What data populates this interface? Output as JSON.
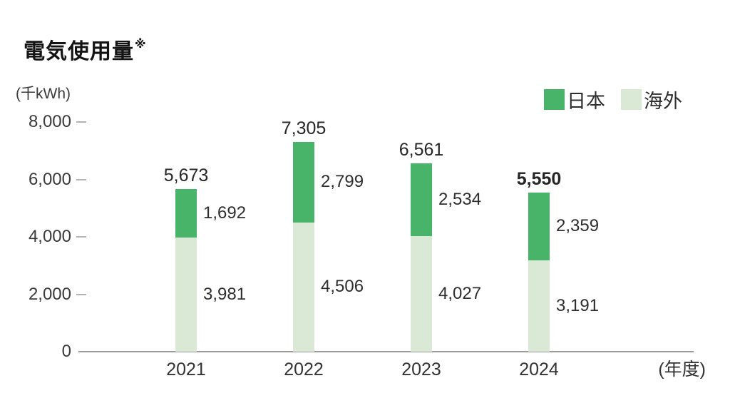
{
  "title": "電気使用量",
  "title_note": "※",
  "y_axis_unit": "(千kWh)",
  "x_axis_unit": "(年度)",
  "colors": {
    "japan": "#47b46a",
    "overseas": "#d9e9d5",
    "axis_line": "#9b9b9b",
    "tick": "#b4b4b4",
    "text": "#2e2e2e"
  },
  "legend": {
    "items": [
      {
        "label": "日本",
        "color": "#47b46a"
      },
      {
        "label": "海外",
        "color": "#d9e9d5"
      }
    ]
  },
  "chart_data": {
    "type": "bar",
    "stacked": true,
    "title": "電気使用量",
    "unit": "千kWh",
    "xlabel": "年度",
    "categories": [
      "2021",
      "2022",
      "2023",
      "2024"
    ],
    "series": [
      {
        "name": "日本",
        "color": "#47b46a",
        "values": [
          1692,
          2799,
          2534,
          2359
        ],
        "values_display": [
          "1,692",
          "2,799",
          "2,534",
          "2,359"
        ]
      },
      {
        "name": "海外",
        "color": "#d9e9d5",
        "values": [
          3981,
          4506,
          4027,
          3191
        ],
        "values_display": [
          "3,981",
          "4,506",
          "4,027",
          "3,191"
        ]
      }
    ],
    "totals": [
      5673,
      7305,
      6561,
      5550
    ],
    "totals_display": [
      "5,673",
      "7,305",
      "6,561",
      "5,550"
    ],
    "emphasized_total_index": 3,
    "ylim": [
      0,
      8000
    ],
    "yticks": [
      0,
      2000,
      4000,
      6000,
      8000
    ],
    "ytick_labels": [
      "0",
      "2,000",
      "4,000",
      "6,000",
      "8,000"
    ],
    "grid": false,
    "legend_position": "top-right"
  }
}
